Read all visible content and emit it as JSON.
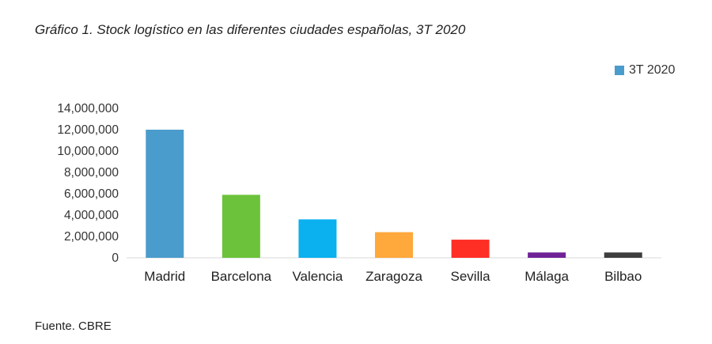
{
  "chart_data": {
    "type": "bar",
    "title": "Gráfico 1. Stock logístico en las diferentes ciudades españolas, 3T 2020",
    "legend": {
      "label": "3T 2020",
      "color": "#4a9ccc",
      "position": "top-right"
    },
    "categories": [
      "Madrid",
      "Barcelona",
      "Valencia",
      "Zaragoza",
      "Sevilla",
      "Málaga",
      "Bilbao"
    ],
    "values": [
      12000000,
      5900000,
      3600000,
      2400000,
      1700000,
      500000,
      500000
    ],
    "colors": [
      "#4a9ccc",
      "#6cc23a",
      "#0bb0ef",
      "#ffa83c",
      "#ff2f26",
      "#6f2196",
      "#3d3d3d"
    ],
    "y_ticks": [
      "0",
      "2,000,000",
      "4,000,000",
      "6,000,000",
      "8,000,000",
      "10,000,000",
      "12,000,000",
      "14,000,000"
    ],
    "ylim": [
      0,
      14000000
    ],
    "grid": false
  },
  "source": "Fuente. CBRE"
}
